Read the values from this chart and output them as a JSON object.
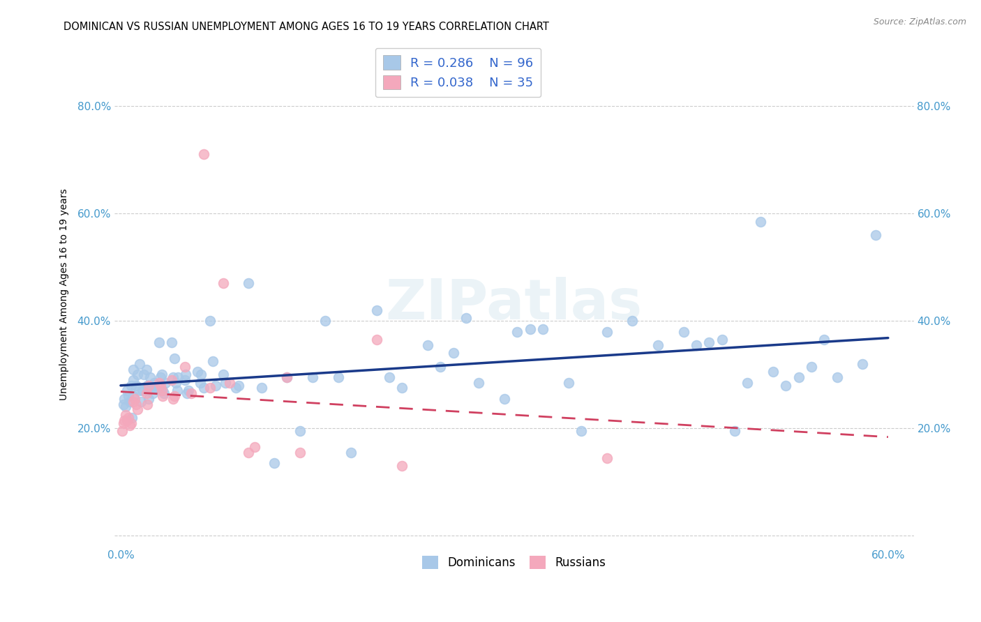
{
  "title": "DOMINICAN VS RUSSIAN UNEMPLOYMENT AMONG AGES 16 TO 19 YEARS CORRELATION CHART",
  "source": "Source: ZipAtlas.com",
  "ylabel": "Unemployment Among Ages 16 to 19 years",
  "xlim": [
    -0.005,
    0.62
  ],
  "ylim": [
    -0.02,
    0.92
  ],
  "xtick_pos": [
    0.0,
    0.1,
    0.2,
    0.3,
    0.4,
    0.5,
    0.6
  ],
  "xticklabels": [
    "0.0%",
    "",
    "",
    "",
    "",
    "",
    "60.0%"
  ],
  "ytick_pos": [
    0.0,
    0.2,
    0.4,
    0.6,
    0.8
  ],
  "yticklabels_left": [
    "",
    "20.0%",
    "40.0%",
    "60.0%",
    "80.0%"
  ],
  "yticklabels_right": [
    "",
    "20.0%",
    "40.0%",
    "60.0%",
    "80.0%"
  ],
  "dominican_R": "0.286",
  "dominican_N": "96",
  "russian_R": "0.038",
  "russian_N": "35",
  "dominican_color": "#a8c8e8",
  "russian_color": "#f4a8bc",
  "dominican_line_color": "#1a3a8a",
  "russian_line_color": "#d04060",
  "legend_label_dominicans": "Dominicans",
  "legend_label_russians": "Russians",
  "watermark": "ZIPatlas",
  "grid_color": "#cccccc",
  "dominican_x": [
    0.002,
    0.003,
    0.004,
    0.005,
    0.006,
    0.007,
    0.008,
    0.009,
    0.01,
    0.01,
    0.01,
    0.012,
    0.013,
    0.014,
    0.015,
    0.016,
    0.017,
    0.018,
    0.02,
    0.021,
    0.022,
    0.023,
    0.024,
    0.025,
    0.026,
    0.027,
    0.03,
    0.031,
    0.032,
    0.033,
    0.034,
    0.035,
    0.04,
    0.041,
    0.042,
    0.043,
    0.044,
    0.045,
    0.05,
    0.051,
    0.052,
    0.053,
    0.06,
    0.062,
    0.063,
    0.065,
    0.07,
    0.072,
    0.074,
    0.08,
    0.082,
    0.09,
    0.092,
    0.1,
    0.11,
    0.12,
    0.13,
    0.14,
    0.15,
    0.16,
    0.17,
    0.18,
    0.2,
    0.21,
    0.22,
    0.24,
    0.25,
    0.26,
    0.27,
    0.28,
    0.3,
    0.31,
    0.32,
    0.33,
    0.35,
    0.36,
    0.38,
    0.4,
    0.42,
    0.44,
    0.46,
    0.48,
    0.5,
    0.52,
    0.54,
    0.56,
    0.58,
    0.59,
    0.45,
    0.47,
    0.49,
    0.51,
    0.53,
    0.55
  ],
  "dominican_y": [
    0.245,
    0.255,
    0.24,
    0.27,
    0.26,
    0.25,
    0.28,
    0.22,
    0.26,
    0.29,
    0.31,
    0.28,
    0.3,
    0.27,
    0.32,
    0.25,
    0.27,
    0.3,
    0.31,
    0.28,
    0.255,
    0.295,
    0.275,
    0.265,
    0.285,
    0.275,
    0.36,
    0.295,
    0.3,
    0.27,
    0.265,
    0.285,
    0.36,
    0.295,
    0.33,
    0.285,
    0.27,
    0.295,
    0.29,
    0.3,
    0.265,
    0.27,
    0.305,
    0.285,
    0.3,
    0.275,
    0.4,
    0.325,
    0.28,
    0.3,
    0.285,
    0.275,
    0.28,
    0.47,
    0.275,
    0.135,
    0.295,
    0.195,
    0.295,
    0.4,
    0.295,
    0.155,
    0.42,
    0.295,
    0.275,
    0.355,
    0.315,
    0.34,
    0.405,
    0.285,
    0.255,
    0.38,
    0.385,
    0.385,
    0.285,
    0.195,
    0.38,
    0.4,
    0.355,
    0.38,
    0.36,
    0.195,
    0.585,
    0.28,
    0.315,
    0.295,
    0.32,
    0.56,
    0.355,
    0.365,
    0.285,
    0.305,
    0.295,
    0.365
  ],
  "russian_x": [
    0.001,
    0.002,
    0.003,
    0.004,
    0.005,
    0.006,
    0.007,
    0.008,
    0.01,
    0.011,
    0.012,
    0.013,
    0.02,
    0.021,
    0.022,
    0.03,
    0.031,
    0.032,
    0.033,
    0.04,
    0.041,
    0.042,
    0.05,
    0.055,
    0.065,
    0.07,
    0.08,
    0.085,
    0.1,
    0.105,
    0.13,
    0.14,
    0.2,
    0.22,
    0.38
  ],
  "russian_y": [
    0.195,
    0.21,
    0.215,
    0.225,
    0.215,
    0.22,
    0.205,
    0.21,
    0.25,
    0.255,
    0.245,
    0.235,
    0.265,
    0.245,
    0.28,
    0.285,
    0.28,
    0.27,
    0.26,
    0.29,
    0.255,
    0.26,
    0.315,
    0.265,
    0.71,
    0.275,
    0.47,
    0.285,
    0.155,
    0.165,
    0.295,
    0.155,
    0.365,
    0.13,
    0.145
  ]
}
